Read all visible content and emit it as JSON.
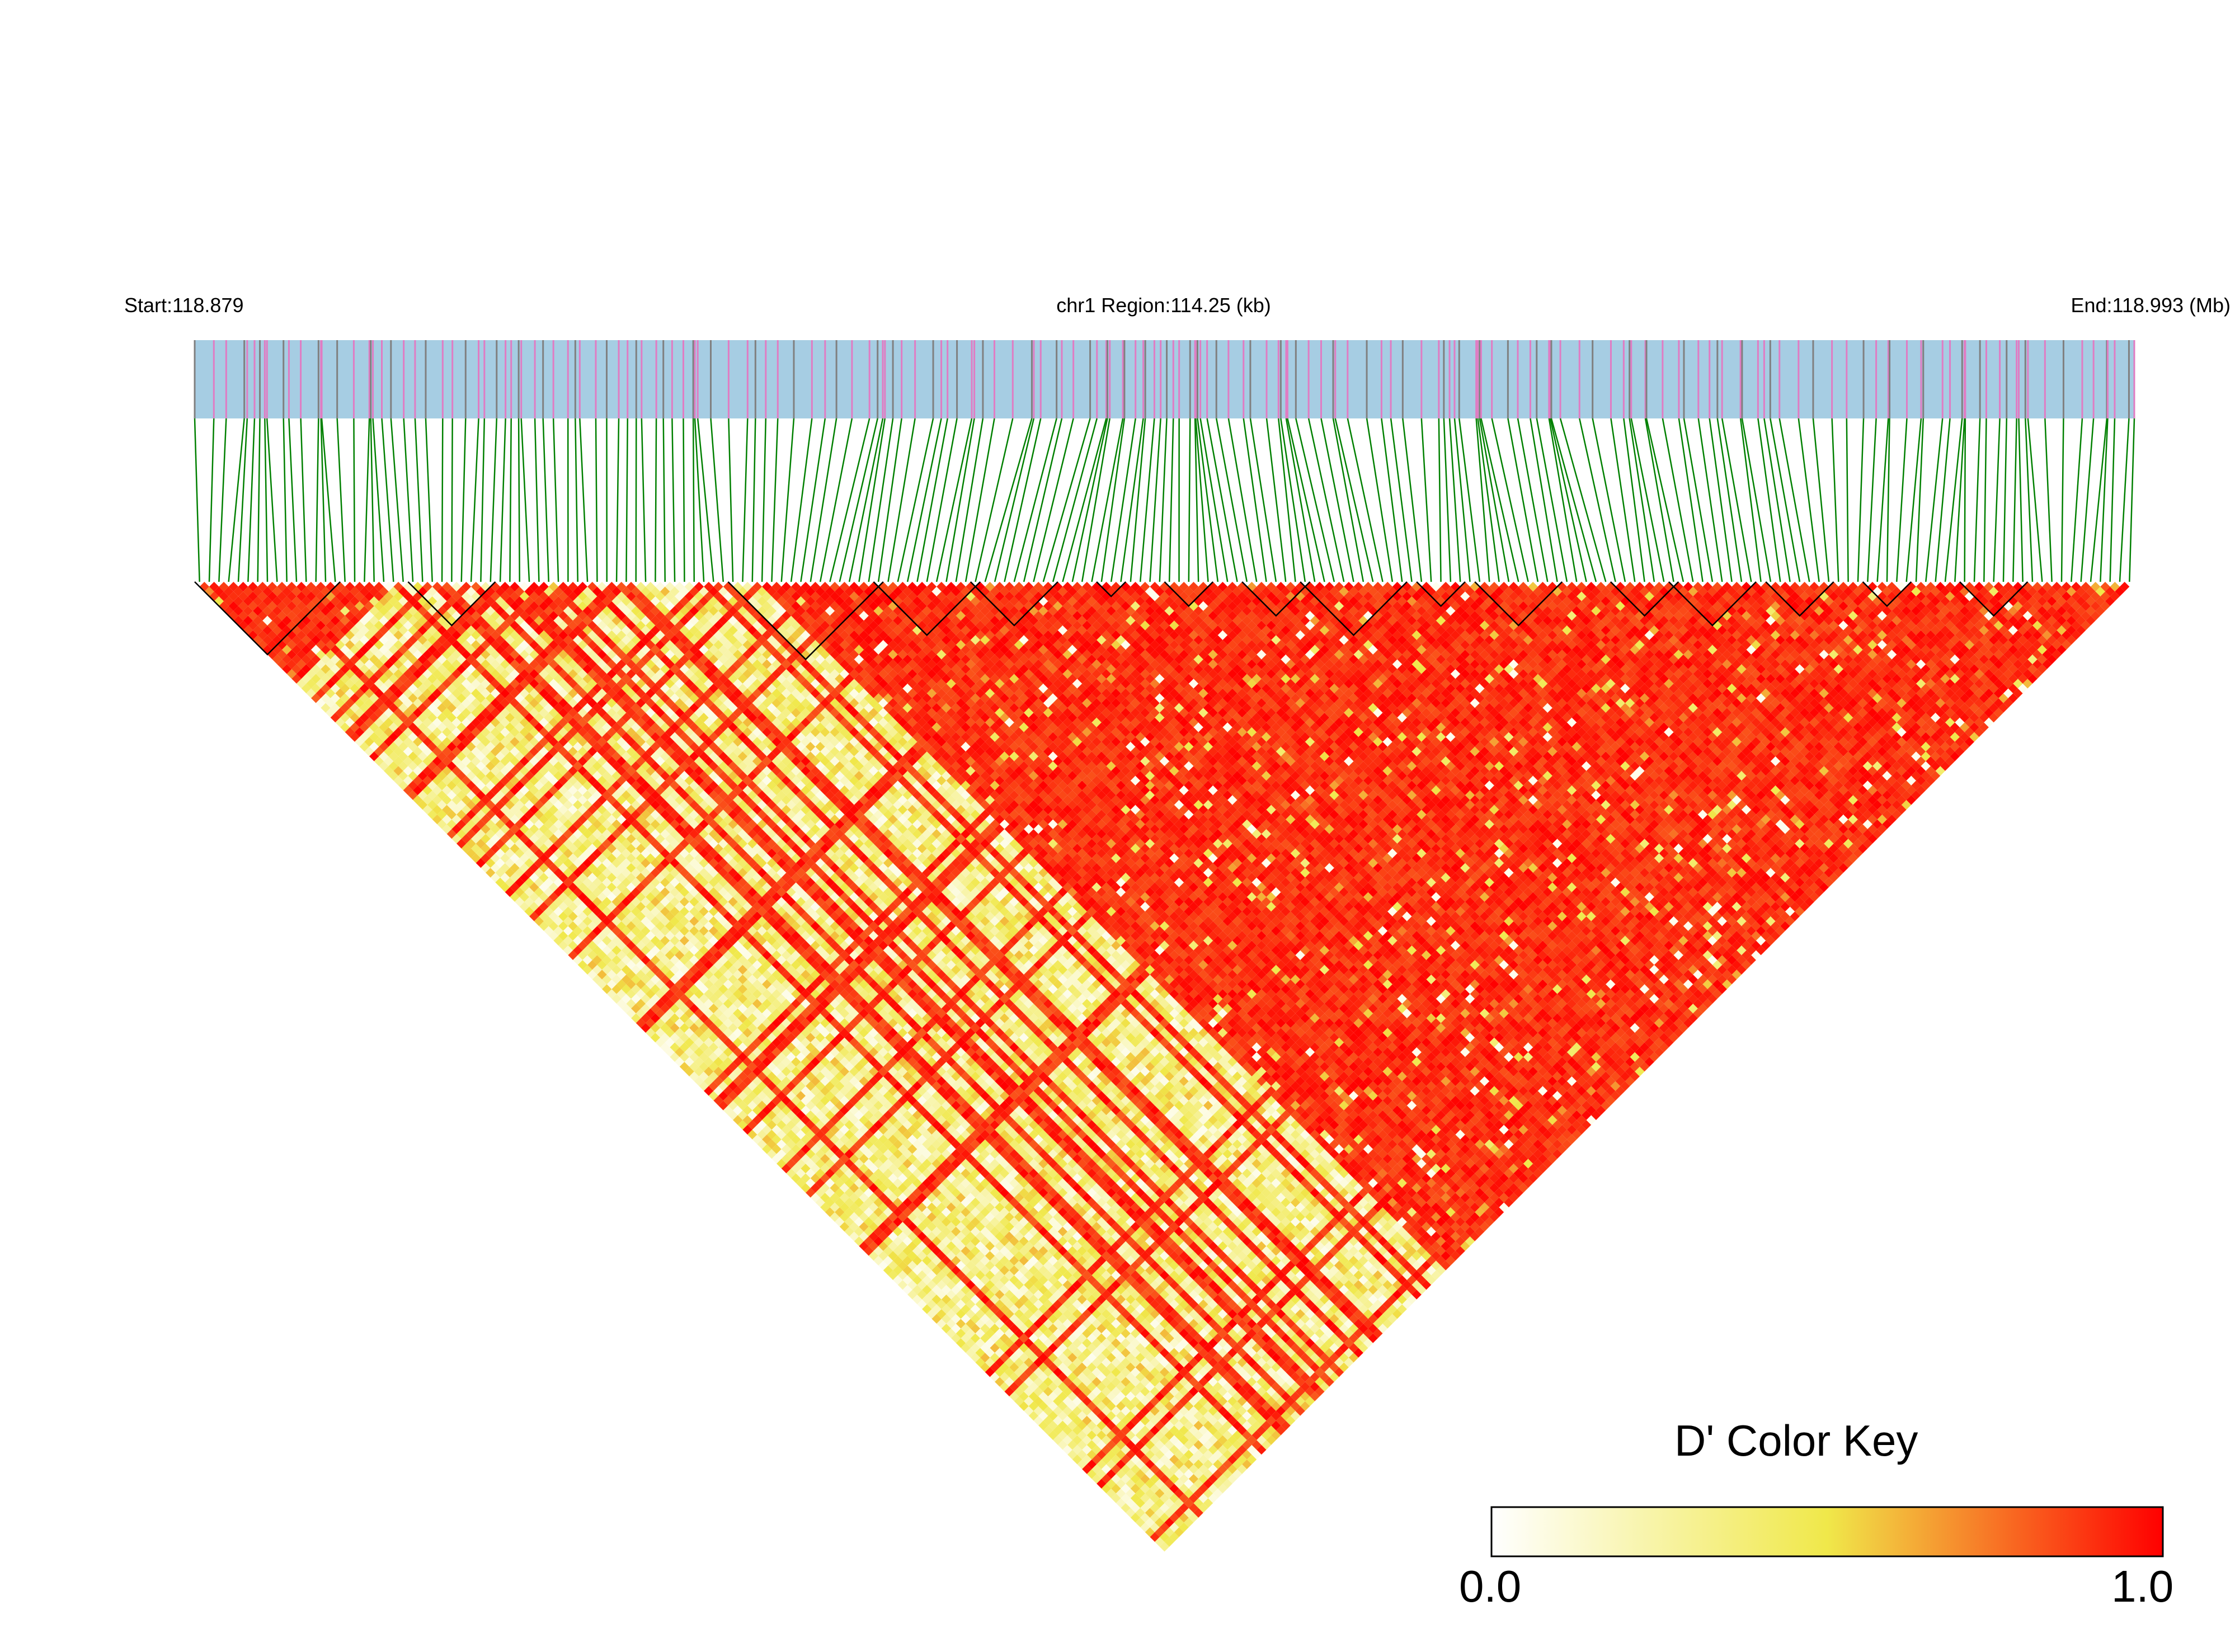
{
  "header": {
    "start_label": "Start:118.879",
    "region_label": "chr1 Region:114.25 (kb)",
    "end_label": "End:118.993 (Mb)"
  },
  "colors": {
    "track_background": "#a6cde3",
    "snp_tick_gray": "#808080",
    "snp_tick_pink": "#e07cc3",
    "connector_green": "#008000",
    "block_outline": "#000000",
    "ld_high": "#ff0000",
    "ld_mid": "#f0e84a",
    "ld_low": "#ffffff"
  },
  "chart_data": {
    "type": "heatmap",
    "title": "",
    "description_metric": "D'",
    "chromosome": "chr1",
    "region_start_mb": 118.879,
    "region_end_mb": 118.993,
    "region_length_kb": 114.25,
    "n_snps": 200,
    "ld_structure": {
      "high_ld_region": "right portion of triangle (D' near 1.0)",
      "low_ld_band": "diagonal band from upper-left running to bottom apex (D' 0.0–0.5)"
    },
    "color_key": {
      "title": "D' Color Key",
      "min_label": "0.0",
      "max_label": "1.0",
      "range": [
        0.0,
        1.0
      ],
      "gradient": [
        "#ffffff",
        "#f0e84a",
        "#ff0000"
      ]
    }
  }
}
